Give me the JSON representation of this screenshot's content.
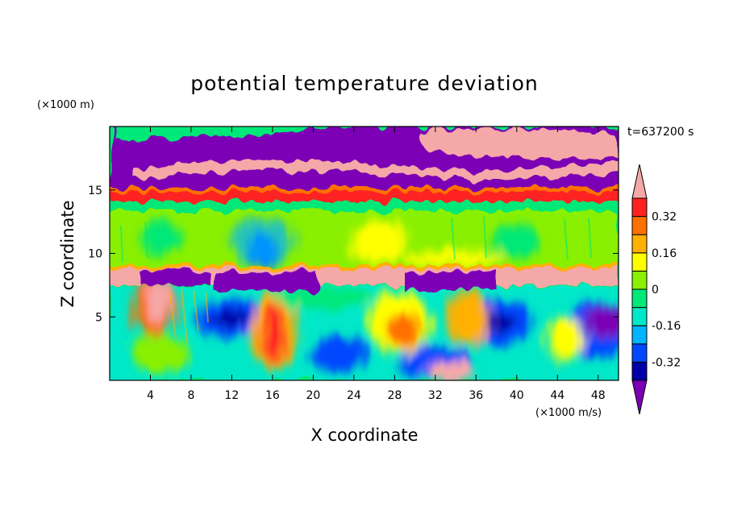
{
  "chart_data": {
    "type": "heatmap",
    "title": "potential temperature deviation",
    "xlabel": "X coordinate",
    "ylabel": "Z coordinate",
    "x_units": "(×1000 m/s)",
    "y_units": "(×1000 m)",
    "time_label": "t=637200 s",
    "xlim": [
      0,
      50
    ],
    "ylim": [
      0,
      20
    ],
    "x_ticks": [
      "4",
      "8",
      "12",
      "16",
      "20",
      "24",
      "28",
      "32",
      "36",
      "40",
      "44",
      "48"
    ],
    "y_ticks": [
      "5",
      "10",
      "15"
    ],
    "colorbar": {
      "labels": [
        "0.32",
        "0.16",
        "0",
        "-0.16",
        "-0.32"
      ],
      "levels": [
        -0.4,
        -0.32,
        -0.24,
        -0.16,
        -0.08,
        0,
        0.08,
        0.16,
        0.24,
        0.32,
        0.4
      ],
      "colors": [
        "#7B00B5",
        "#0000A6",
        "#0047FF",
        "#00B4FF",
        "#00E8C8",
        "#00E878",
        "#88F000",
        "#FFFF00",
        "#FFB000",
        "#FF7000",
        "#FF2020",
        "#F5A8A8"
      ],
      "extend": "both"
    }
  }
}
